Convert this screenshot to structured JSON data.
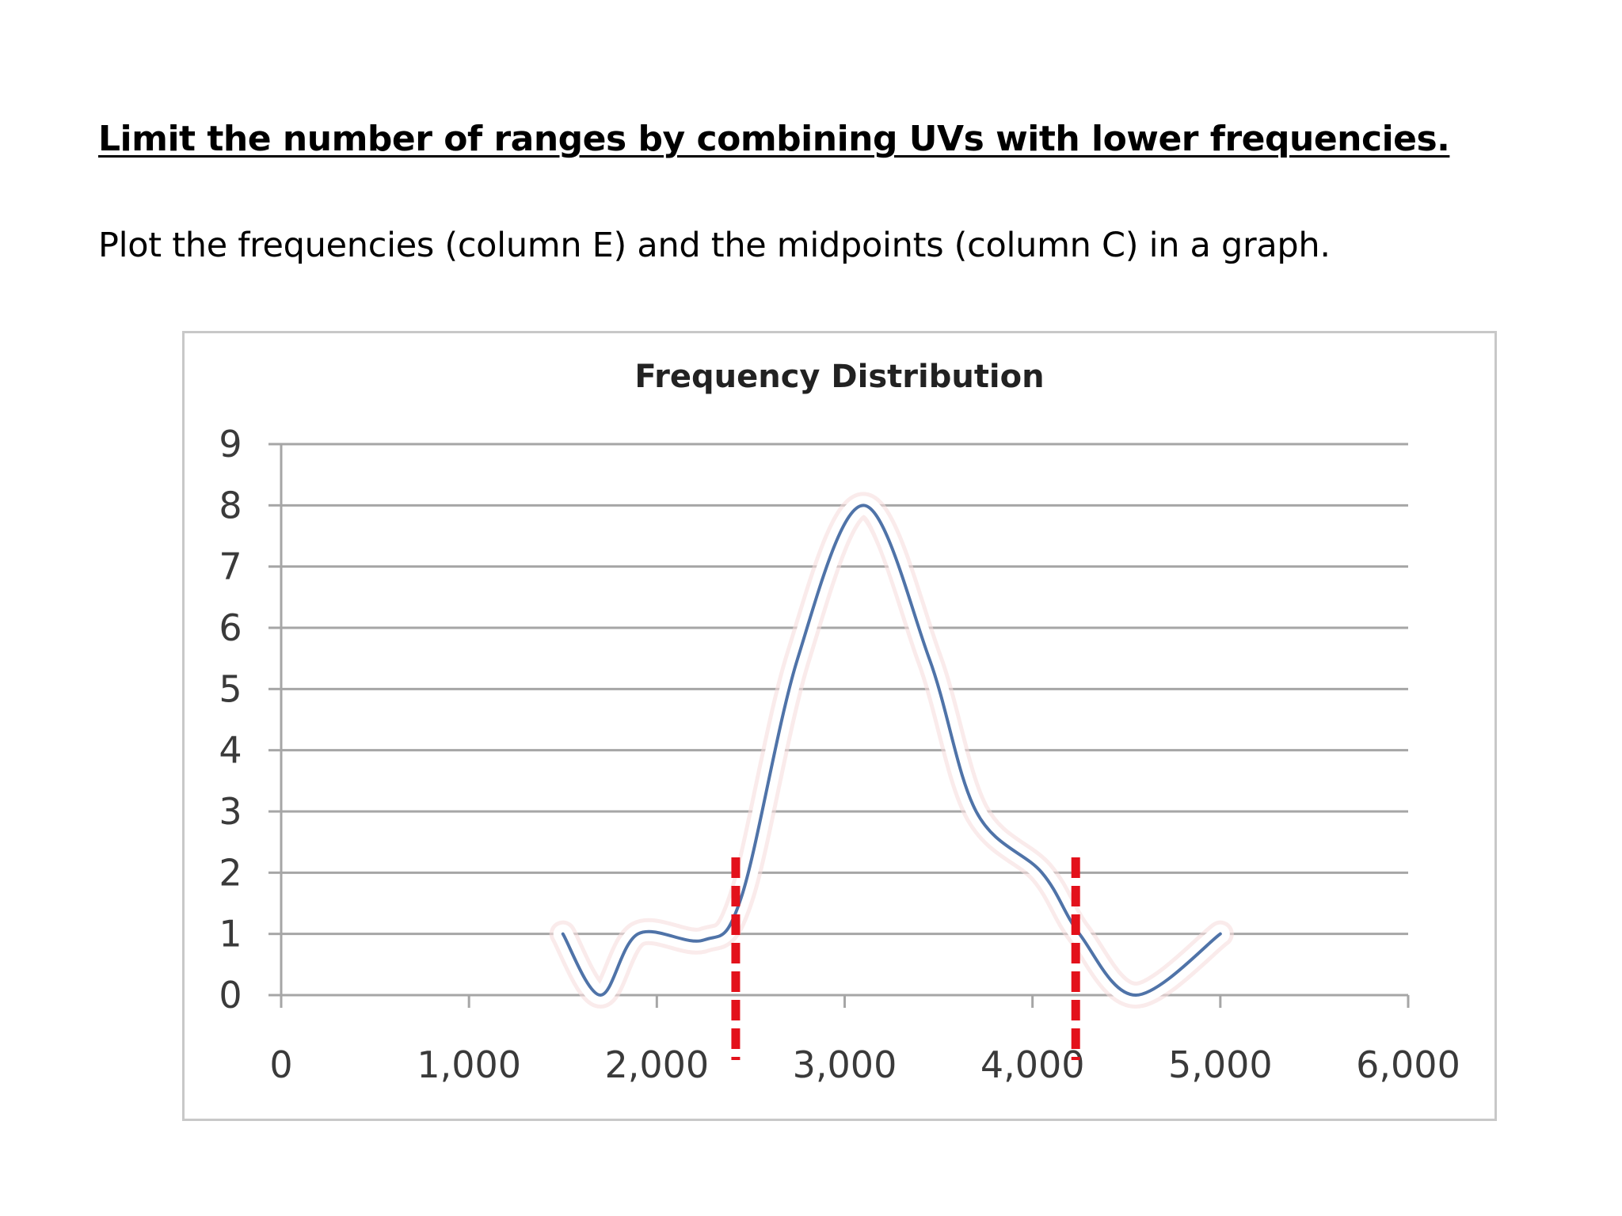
{
  "slide": {
    "heading": "Limit the number of ranges by combining UVs with lower frequencies. ",
    "body": "Plot the frequencies (column E) and the midpoints (column C) in a graph."
  },
  "chart_data": {
    "type": "line",
    "title": "Frequency Distribution",
    "xlabel": "",
    "ylabel": "",
    "xlim": [
      0,
      6000
    ],
    "ylim": [
      0,
      9
    ],
    "x_ticks": [
      0,
      1000,
      2000,
      3000,
      4000,
      5000,
      6000
    ],
    "x_tick_labels": [
      "0",
      "1,000",
      "2,000",
      "3,000",
      "4,000",
      "5,000",
      "6,000"
    ],
    "y_ticks": [
      0,
      1,
      2,
      3,
      4,
      5,
      6,
      7,
      8,
      9
    ],
    "y_tick_labels": [
      "0",
      "1",
      "2",
      "3",
      "4",
      "5",
      "6",
      "7",
      "8",
      "9"
    ],
    "grid": true,
    "smooth": true,
    "series": [
      {
        "color": "#4f73a8",
        "x": [
          1500,
          1700,
          1900,
          2250,
          2450,
          2750,
          3100,
          3450,
          3700,
          4050,
          4250,
          4550,
          5000
        ],
        "y": [
          1,
          0,
          1,
          0.9,
          1.6,
          5.5,
          8,
          5.5,
          3,
          2,
          1,
          0,
          1
        ]
      }
    ],
    "cutoff_lines": {
      "color": "#e3111b",
      "style": "dashed",
      "x": [
        2420,
        4230
      ],
      "y_top": 2.25
    }
  }
}
